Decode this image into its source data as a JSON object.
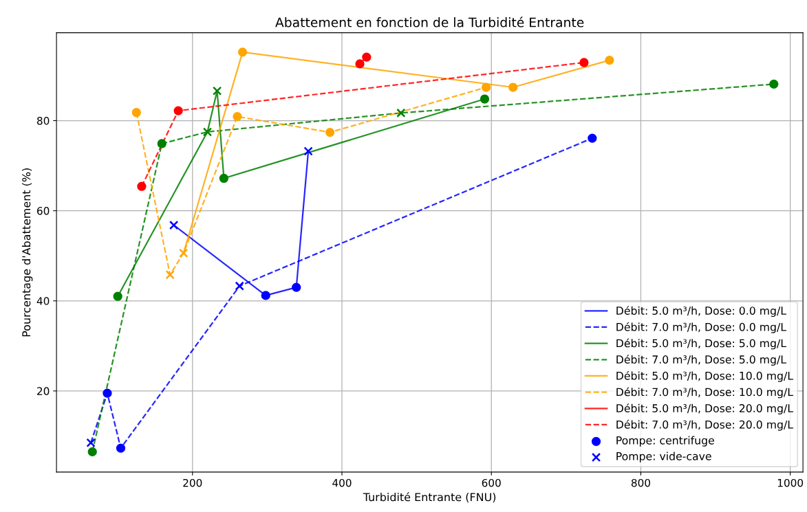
{
  "chart_data": {
    "type": "line",
    "title": "Abattement en fonction de la Turbidité Entrante",
    "xlabel": "Turbidité Entrante (FNU)",
    "ylabel": "Pourcentage d'Abattement (%)",
    "xlim": [
      18,
      1017
    ],
    "ylim": [
      2,
      99.5
    ],
    "xticks": [
      200,
      400,
      600,
      800,
      1000
    ],
    "yticks": [
      20,
      40,
      60,
      80
    ],
    "grid": true,
    "legend": "bottom right",
    "series": [
      {
        "name": "Débit: 5.0 m³/h, Dose: 0.0 mg/L",
        "color": "#0000ff",
        "line_style": "solid",
        "marker": "none",
        "x": [
          175,
          298,
          339,
          355
        ],
        "values": [
          56.8,
          41.2,
          43.0,
          73.2
        ]
      },
      {
        "name": "Débit: 7.0 m³/h, Dose: 0.0 mg/L",
        "color": "#0000ff",
        "line_style": "dashed",
        "marker": "none",
        "x": [
          64,
          86,
          104,
          263,
          735
        ],
        "values": [
          8.5,
          19.5,
          7.3,
          43.3,
          76.1
        ]
      },
      {
        "name": "Débit: 5.0 m³/h, Dose: 5.0 mg/L",
        "color": "#008000",
        "line_style": "solid",
        "marker": "none",
        "x": [
          100,
          220,
          233,
          242,
          591
        ],
        "values": [
          41.0,
          77.5,
          86.6,
          67.2,
          84.8
        ]
      },
      {
        "name": "Débit: 7.0 m³/h, Dose: 5.0 mg/L",
        "color": "#008000",
        "line_style": "dashed",
        "marker": "none",
        "x": [
          66,
          159,
          220,
          479,
          978
        ],
        "values": [
          6.5,
          74.9,
          77.5,
          81.7,
          88.1
        ]
      },
      {
        "name": "Débit: 5.0 m³/h, Dose: 10.0 mg/L",
        "color": "#ffa500",
        "line_style": "solid",
        "marker": "none",
        "x": [
          188,
          267,
          629,
          758
        ],
        "values": [
          50.6,
          95.2,
          87.4,
          93.4
        ]
      },
      {
        "name": "Débit: 7.0 m³/h, Dose: 10.0 mg/L",
        "color": "#ffa500",
        "line_style": "dashed",
        "marker": "none",
        "x": [
          125,
          170,
          188,
          260,
          384,
          593
        ],
        "values": [
          81.8,
          45.8,
          50.6,
          80.9,
          77.4,
          87.4
        ]
      },
      {
        "name": "Débit: 5.0 m³/h, Dose: 20.0 mg/L",
        "color": "#ff0000",
        "line_style": "solid",
        "marker": "none",
        "x": [
          424,
          433
        ],
        "values": [
          92.6,
          94.1
        ]
      },
      {
        "name": "Débit: 7.0 m³/h, Dose: 20.0 mg/L",
        "color": "#ff0000",
        "line_style": "dashed",
        "marker": "none",
        "x": [
          132,
          181,
          724
        ],
        "values": [
          65.4,
          82.2,
          92.9
        ]
      },
      {
        "type": "scatter",
        "name": "Pompe: centrifuge",
        "color": "#0000ff",
        "marker": "circle",
        "x": [
          298,
          339,
          86,
          104,
          735
        ],
        "values": [
          41.2,
          43.0,
          19.5,
          7.3,
          76.1
        ]
      },
      {
        "type": "scatter",
        "name": "Pompe: vide-cave",
        "color": "#0000ff",
        "marker": "cross",
        "x": [
          175,
          355,
          64,
          263
        ],
        "values": [
          56.8,
          73.2,
          8.5,
          43.3
        ]
      },
      {
        "type": "scatter",
        "color": "#008000",
        "marker": "circle",
        "x": [
          100,
          242,
          591,
          66,
          159,
          978
        ],
        "values": [
          41.0,
          67.2,
          84.8,
          6.5,
          74.9,
          88.1
        ]
      },
      {
        "type": "scatter",
        "color": "#008000",
        "marker": "cross",
        "x": [
          220,
          233,
          479
        ],
        "values": [
          77.5,
          86.6,
          81.7
        ]
      },
      {
        "type": "scatter",
        "color": "#ffa500",
        "marker": "circle",
        "x": [
          267,
          629,
          758,
          125,
          260,
          384,
          593
        ],
        "values": [
          95.2,
          87.4,
          93.4,
          81.8,
          80.9,
          77.4,
          87.4
        ]
      },
      {
        "type": "scatter",
        "color": "#ffa500",
        "marker": "cross",
        "x": [
          188,
          170
        ],
        "values": [
          50.6,
          45.8
        ]
      },
      {
        "type": "scatter",
        "color": "#ff0000",
        "marker": "circle",
        "x": [
          424,
          433,
          132,
          181,
          724
        ],
        "values": [
          92.6,
          94.1,
          65.4,
          82.2,
          92.9
        ]
      }
    ]
  }
}
